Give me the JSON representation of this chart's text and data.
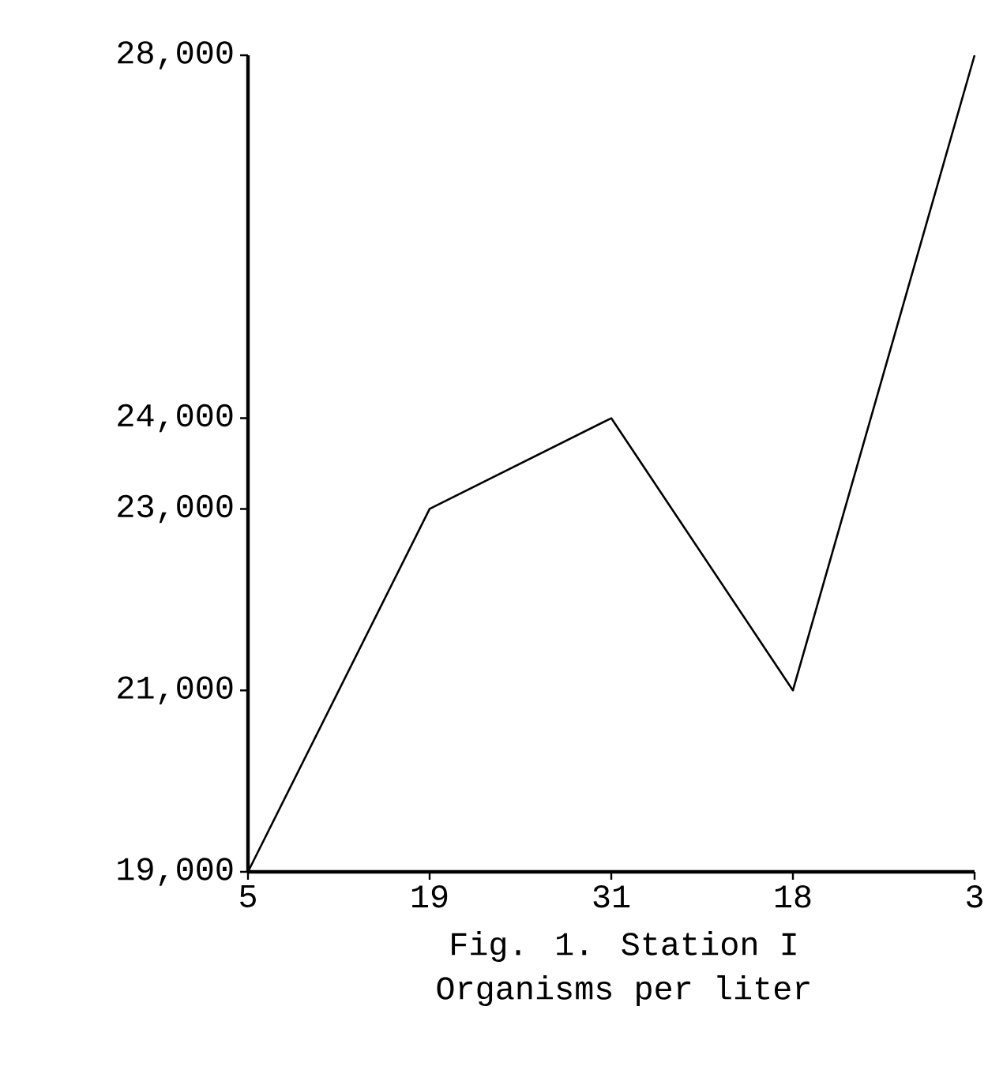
{
  "chart_data": {
    "type": "line",
    "title": "Fig. 1.  Station I",
    "annotations": [
      "Organisms per liter"
    ],
    "categories": [
      "5",
      "19",
      "31",
      "18",
      "3"
    ],
    "values": [
      19000,
      23000,
      24000,
      21000,
      28000
    ],
    "color": "#000000",
    "marker": "none",
    "line_style": "solid",
    "ylim": [
      19000,
      28000
    ],
    "yticks": [
      {
        "value": 19000,
        "label": "19,000"
      },
      {
        "value": 21000,
        "label": "21,000"
      },
      {
        "value": 23000,
        "label": "23,000"
      },
      {
        "value": 24000,
        "label": "24,000"
      },
      {
        "value": 28000,
        "label": "28,000"
      }
    ],
    "grid": false
  }
}
